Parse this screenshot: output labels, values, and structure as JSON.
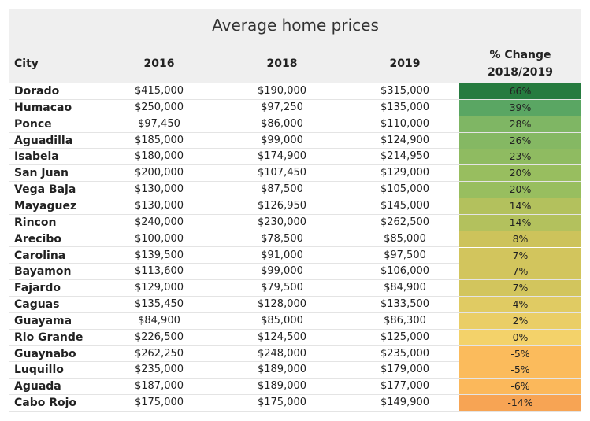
{
  "chart_data": {
    "type": "table",
    "title": "Average home prices",
    "columns": [
      "City",
      "2016",
      "2018",
      "2019",
      "% Change 2018/2019"
    ],
    "pct_header_lines": [
      "% Change",
      "2018/2019"
    ],
    "rows": [
      {
        "city": "Dorado",
        "v2016": "$415,000",
        "v2018": "$190,000",
        "v2019": "$315,000",
        "pct": "66%",
        "pct_value": 66
      },
      {
        "city": "Humacao",
        "v2016": "$250,000",
        "v2018": "$97,250",
        "v2019": "$135,000",
        "pct": "39%",
        "pct_value": 39
      },
      {
        "city": "Ponce",
        "v2016": "$97,450",
        "v2018": "$86,000",
        "v2019": "$110,000",
        "pct": "28%",
        "pct_value": 28
      },
      {
        "city": "Aguadilla",
        "v2016": "$185,000",
        "v2018": "$99,000",
        "v2019": "$124,900",
        "pct": "26%",
        "pct_value": 26
      },
      {
        "city": "Isabela",
        "v2016": "$180,000",
        "v2018": "$174,900",
        "v2019": "$214,950",
        "pct": "23%",
        "pct_value": 23
      },
      {
        "city": "San Juan",
        "v2016": "$200,000",
        "v2018": "$107,450",
        "v2019": "$129,000",
        "pct": "20%",
        "pct_value": 20
      },
      {
        "city": "Vega Baja",
        "v2016": "$130,000",
        "v2018": "$87,500",
        "v2019": "$105,000",
        "pct": "20%",
        "pct_value": 20
      },
      {
        "city": "Mayaguez",
        "v2016": "$130,000",
        "v2018": "$126,950",
        "v2019": "$145,000",
        "pct": "14%",
        "pct_value": 14
      },
      {
        "city": "Rincon",
        "v2016": "$240,000",
        "v2018": "$230,000",
        "v2019": "$262,500",
        "pct": "14%",
        "pct_value": 14
      },
      {
        "city": "Arecibo",
        "v2016": "$100,000",
        "v2018": "$78,500",
        "v2019": "$85,000",
        "pct": "8%",
        "pct_value": 8
      },
      {
        "city": "Carolina",
        "v2016": "$139,500",
        "v2018": "$91,000",
        "v2019": "$97,500",
        "pct": "7%",
        "pct_value": 7
      },
      {
        "city": "Bayamon",
        "v2016": "$113,600",
        "v2018": "$99,000",
        "v2019": "$106,000",
        "pct": "7%",
        "pct_value": 7
      },
      {
        "city": "Fajardo",
        "v2016": "$129,000",
        "v2018": "$79,500",
        "v2019": "$84,900",
        "pct": "7%",
        "pct_value": 7
      },
      {
        "city": "Caguas",
        "v2016": "$135,450",
        "v2018": "$128,000",
        "v2019": "$133,500",
        "pct": "4%",
        "pct_value": 4
      },
      {
        "city": "Guayama",
        "v2016": "$84,900",
        "v2018": "$85,000",
        "v2019": "$86,300",
        "pct": "2%",
        "pct_value": 2
      },
      {
        "city": "Rio Grande",
        "v2016": "$226,500",
        "v2018": "$124,500",
        "v2019": "$125,000",
        "pct": "0%",
        "pct_value": 0
      },
      {
        "city": "Guaynabo",
        "v2016": "$262,250",
        "v2018": "$248,000",
        "v2019": "$235,000",
        "pct": "-5%",
        "pct_value": -5
      },
      {
        "city": "Luquillo",
        "v2016": "$235,000",
        "v2018": "$189,000",
        "v2019": "$179,000",
        "pct": "-5%",
        "pct_value": -5
      },
      {
        "city": "Aguada",
        "v2016": "$187,000",
        "v2018": "$189,000",
        "v2019": "$177,000",
        "pct": "-6%",
        "pct_value": -6
      },
      {
        "city": "Cabo Rojo",
        "v2016": "$175,000",
        "v2018": "$175,000",
        "v2019": "$149,900",
        "pct": "-14%",
        "pct_value": -14
      }
    ],
    "color_scale": {
      "min": -14,
      "max": 66,
      "stops": [
        {
          "value": -14,
          "color": "#f7a454"
        },
        {
          "value": -5,
          "color": "#fbbb5c"
        },
        {
          "value": 0,
          "color": "#f3d26a"
        },
        {
          "value": 8,
          "color": "#cdc35b"
        },
        {
          "value": 20,
          "color": "#98be5f"
        },
        {
          "value": 28,
          "color": "#7fb664"
        },
        {
          "value": 39,
          "color": "#5aa663"
        },
        {
          "value": 66,
          "color": "#267b3f"
        }
      ]
    }
  }
}
